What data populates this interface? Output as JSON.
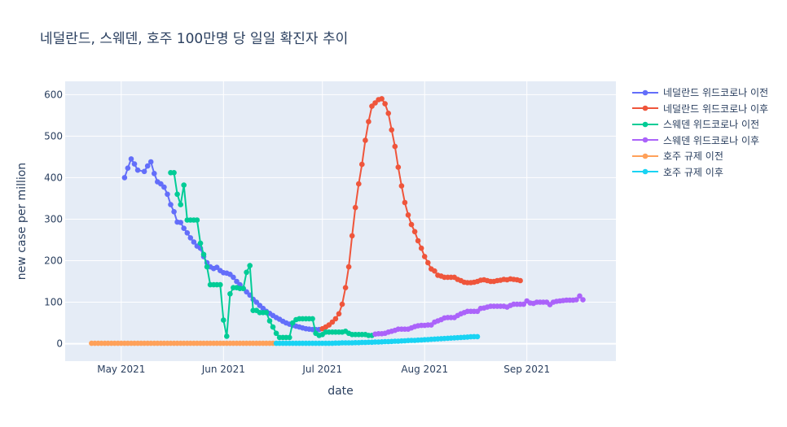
{
  "chart_data": {
    "type": "line",
    "title": "네덜란드, 스웨덴, 호주 100만명 당 일일 확진자 추이",
    "xlabel": "date",
    "ylabel": "new case per million",
    "x_ticks": [
      "May 2021",
      "Jun 2021",
      "Jul 2021",
      "Aug 2021",
      "Sep 2021"
    ],
    "x_tick_dates": [
      "2021-05-01",
      "2021-06-01",
      "2021-07-01",
      "2021-08-01",
      "2021-09-01"
    ],
    "y_ticks": [
      "0",
      "100",
      "200",
      "300",
      "400",
      "500",
      "600"
    ],
    "y_tick_values": [
      0,
      100,
      200,
      300,
      400,
      500,
      600
    ],
    "xlim": [
      "2021-04-14",
      "2021-09-28"
    ],
    "ylim": [
      -42,
      632
    ],
    "grid": true,
    "legend_position": "right",
    "series": [
      {
        "name": "네덜란드 위드코로나 이전",
        "color": "#636efa",
        "x": [
          "2021-05-02",
          "2021-05-03",
          "2021-05-04",
          "2021-05-05",
          "2021-05-06",
          "2021-05-08",
          "2021-05-09",
          "2021-05-10",
          "2021-05-11",
          "2021-05-12",
          "2021-05-13",
          "2021-05-14",
          "2021-05-15",
          "2021-05-16",
          "2021-05-17",
          "2021-05-18",
          "2021-05-19",
          "2021-05-20",
          "2021-05-21",
          "2021-05-22",
          "2021-05-23",
          "2021-05-24",
          "2021-05-25",
          "2021-05-26",
          "2021-05-27",
          "2021-05-28",
          "2021-05-29",
          "2021-05-30",
          "2021-05-31",
          "2021-06-01",
          "2021-06-02",
          "2021-06-03",
          "2021-06-04",
          "2021-06-05",
          "2021-06-06",
          "2021-06-07",
          "2021-06-08",
          "2021-06-09",
          "2021-06-10",
          "2021-06-11",
          "2021-06-12",
          "2021-06-13",
          "2021-06-14",
          "2021-06-15",
          "2021-06-16",
          "2021-06-17",
          "2021-06-18",
          "2021-06-19",
          "2021-06-20",
          "2021-06-21",
          "2021-06-22",
          "2021-06-23",
          "2021-06-24",
          "2021-06-25",
          "2021-06-26",
          "2021-06-27",
          "2021-06-28",
          "2021-06-29",
          "2021-06-30"
        ],
        "values": [
          400,
          423,
          445,
          433,
          418,
          415,
          428,
          438,
          410,
          390,
          385,
          377,
          360,
          335,
          318,
          293,
          292,
          278,
          267,
          255,
          245,
          235,
          230,
          210,
          195,
          185,
          181,
          184,
          176,
          171,
          170,
          167,
          160,
          150,
          142,
          133,
          125,
          117,
          107,
          100,
          92,
          85,
          78,
          73,
          68,
          63,
          59,
          54,
          50,
          47,
          44,
          42,
          40,
          38,
          36,
          35,
          34,
          34,
          34
        ]
      },
      {
        "name": "네덜란드 위드코로나 이후",
        "color": "#ef553b",
        "x": [
          "2021-07-01",
          "2021-07-02",
          "2021-07-03",
          "2021-07-04",
          "2021-07-05",
          "2021-07-06",
          "2021-07-07",
          "2021-07-08",
          "2021-07-09",
          "2021-07-10",
          "2021-07-11",
          "2021-07-12",
          "2021-07-13",
          "2021-07-14",
          "2021-07-15",
          "2021-07-16",
          "2021-07-17",
          "2021-07-18",
          "2021-07-19",
          "2021-07-20",
          "2021-07-21",
          "2021-07-22",
          "2021-07-23",
          "2021-07-24",
          "2021-07-25",
          "2021-07-26",
          "2021-07-27",
          "2021-07-28",
          "2021-07-29",
          "2021-07-30",
          "2021-07-31",
          "2021-08-01",
          "2021-08-02",
          "2021-08-03",
          "2021-08-04",
          "2021-08-05",
          "2021-08-06",
          "2021-08-07",
          "2021-08-08",
          "2021-08-09",
          "2021-08-10",
          "2021-08-11",
          "2021-08-12",
          "2021-08-13",
          "2021-08-14",
          "2021-08-15",
          "2021-08-16",
          "2021-08-17",
          "2021-08-18",
          "2021-08-19",
          "2021-08-20",
          "2021-08-21",
          "2021-08-22",
          "2021-08-23",
          "2021-08-24",
          "2021-08-25",
          "2021-08-26",
          "2021-08-27",
          "2021-08-28",
          "2021-08-29",
          "2021-08-30"
        ],
        "values": [
          36,
          40,
          45,
          52,
          60,
          72,
          95,
          135,
          185,
          260,
          328,
          385,
          432,
          490,
          535,
          572,
          580,
          588,
          590,
          578,
          555,
          515,
          475,
          425,
          380,
          340,
          310,
          287,
          270,
          248,
          230,
          210,
          195,
          180,
          175,
          165,
          163,
          160,
          160,
          160,
          160,
          155,
          152,
          148,
          147,
          147,
          148,
          150,
          153,
          154,
          152,
          150,
          150,
          152,
          153,
          155,
          154,
          156,
          155,
          154,
          152
        ]
      },
      {
        "name": "스웨덴 위드코로나 이전",
        "color": "#00cc96",
        "x": [
          "2021-05-16",
          "2021-05-17",
          "2021-05-18",
          "2021-05-19",
          "2021-05-20",
          "2021-05-21",
          "2021-05-22",
          "2021-05-23",
          "2021-05-24",
          "2021-05-25",
          "2021-05-26",
          "2021-05-27",
          "2021-05-28",
          "2021-05-29",
          "2021-05-30",
          "2021-05-31",
          "2021-06-01",
          "2021-06-02",
          "2021-06-03",
          "2021-06-04",
          "2021-06-05",
          "2021-06-06",
          "2021-06-07",
          "2021-06-08",
          "2021-06-09",
          "2021-06-10",
          "2021-06-11",
          "2021-06-12",
          "2021-06-13",
          "2021-06-14",
          "2021-06-15",
          "2021-06-16",
          "2021-06-17",
          "2021-06-18",
          "2021-06-19",
          "2021-06-20",
          "2021-06-21",
          "2021-06-22",
          "2021-06-23",
          "2021-06-24",
          "2021-06-25",
          "2021-06-26",
          "2021-06-27",
          "2021-06-28",
          "2021-06-29",
          "2021-06-30",
          "2021-07-01",
          "2021-07-02",
          "2021-07-03",
          "2021-07-04",
          "2021-07-05",
          "2021-07-06",
          "2021-07-07",
          "2021-07-08",
          "2021-07-09",
          "2021-07-10",
          "2021-07-11",
          "2021-07-12",
          "2021-07-13",
          "2021-07-14",
          "2021-07-15",
          "2021-07-16"
        ],
        "values": [
          412,
          412,
          360,
          335,
          382,
          298,
          298,
          298,
          298,
          242,
          215,
          185,
          142,
          142,
          142,
          142,
          57,
          18,
          120,
          135,
          135,
          133,
          133,
          172,
          188,
          80,
          80,
          75,
          75,
          75,
          55,
          40,
          25,
          15,
          15,
          15,
          15,
          50,
          58,
          60,
          60,
          60,
          60,
          60,
          25,
          20,
          22,
          28,
          28,
          28,
          28,
          28,
          28,
          30,
          25,
          22,
          22,
          22,
          22,
          22,
          20,
          20
        ]
      },
      {
        "name": "스웨덴 위드코로나 이후",
        "color": "#ab63fa",
        "x": [
          "2021-07-17",
          "2021-07-18",
          "2021-07-19",
          "2021-07-20",
          "2021-07-21",
          "2021-07-22",
          "2021-07-23",
          "2021-07-24",
          "2021-07-25",
          "2021-07-26",
          "2021-07-27",
          "2021-07-28",
          "2021-07-29",
          "2021-07-30",
          "2021-07-31",
          "2021-08-01",
          "2021-08-02",
          "2021-08-03",
          "2021-08-04",
          "2021-08-05",
          "2021-08-06",
          "2021-08-07",
          "2021-08-08",
          "2021-08-09",
          "2021-08-10",
          "2021-08-11",
          "2021-08-12",
          "2021-08-13",
          "2021-08-14",
          "2021-08-15",
          "2021-08-16",
          "2021-08-17",
          "2021-08-18",
          "2021-08-19",
          "2021-08-20",
          "2021-08-21",
          "2021-08-22",
          "2021-08-23",
          "2021-08-24",
          "2021-08-25",
          "2021-08-26",
          "2021-08-27",
          "2021-08-28",
          "2021-08-29",
          "2021-08-30",
          "2021-08-31",
          "2021-09-01",
          "2021-09-02",
          "2021-09-03",
          "2021-09-04",
          "2021-09-05",
          "2021-09-06",
          "2021-09-07",
          "2021-09-08",
          "2021-09-09",
          "2021-09-10",
          "2021-09-11",
          "2021-09-12",
          "2021-09-13",
          "2021-09-14",
          "2021-09-15",
          "2021-09-16",
          "2021-09-17",
          "2021-09-18"
        ],
        "values": [
          23,
          24,
          24,
          25,
          28,
          30,
          32,
          35,
          35,
          35,
          35,
          38,
          41,
          43,
          44,
          44,
          45,
          45,
          52,
          55,
          58,
          62,
          63,
          63,
          63,
          68,
          72,
          75,
          78,
          78,
          78,
          78,
          85,
          86,
          88,
          90,
          90,
          90,
          90,
          90,
          88,
          92,
          95,
          95,
          95,
          95,
          103,
          98,
          97,
          100,
          100,
          100,
          100,
          94,
          100,
          102,
          103,
          104,
          105,
          105,
          105,
          106,
          115,
          106
        ]
      },
      {
        "name": "호주 규제 이전",
        "color": "#ffa15a",
        "x_start": "2021-04-22",
        "x_end": "2021-06-16",
        "values_note": "",
        "values": [
          1,
          1,
          1,
          1,
          1,
          1,
          1,
          1,
          1,
          1,
          1,
          1,
          1,
          1,
          1,
          1,
          1,
          1,
          1,
          1,
          1,
          1,
          1,
          1,
          1,
          1,
          1,
          1,
          1,
          1,
          1,
          1,
          1,
          1,
          1,
          1,
          1,
          1,
          1,
          1,
          1,
          1,
          1,
          1,
          1,
          1,
          1,
          1,
          1,
          1,
          1,
          1,
          1,
          1,
          1,
          1
        ]
      },
      {
        "name": "호주 규제 이후",
        "color": "#19d3f3",
        "x_start": "2021-06-17",
        "x_end": "2021-08-17",
        "values": [
          1,
          1,
          1,
          1,
          1,
          1,
          1,
          1,
          1,
          1,
          1,
          1,
          1,
          1,
          1,
          1,
          1,
          1,
          1.5,
          1.5,
          2,
          2,
          2,
          2,
          2.5,
          2.5,
          3,
          3,
          3.5,
          3.5,
          4,
          4,
          4.5,
          5,
          5,
          5.5,
          6,
          6,
          6.5,
          7,
          7.5,
          8,
          8,
          8.5,
          9,
          9.5,
          10,
          10.5,
          11,
          11.5,
          12,
          12.5,
          13,
          13.5,
          14,
          14.5,
          15,
          15.5,
          16,
          16.5,
          17,
          17
        ]
      }
    ]
  }
}
